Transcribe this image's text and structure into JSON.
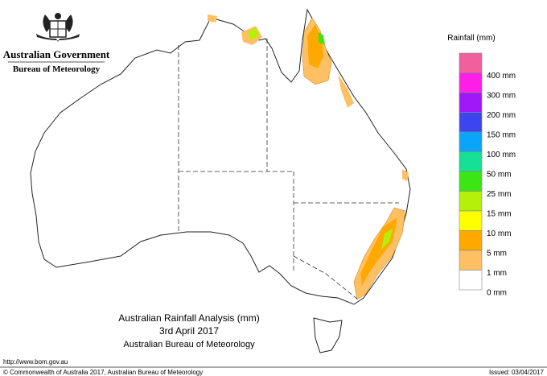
{
  "header": {
    "title": "Australian Government",
    "subtitle": "Bureau of Meteorology"
  },
  "legend": {
    "title": "Rainfall (mm)",
    "items": [
      {
        "label": null,
        "color": "#f0609c"
      },
      {
        "label": "400 mm",
        "color": "#ff1ee8"
      },
      {
        "label": "300 mm",
        "color": "#a018f8"
      },
      {
        "label": "200 mm",
        "color": "#3c46f0"
      },
      {
        "label": "150 mm",
        "color": "#0aa4f8"
      },
      {
        "label": "100 mm",
        "color": "#14e096"
      },
      {
        "label": "50 mm",
        "color": "#3ce614"
      },
      {
        "label": "25 mm",
        "color": "#b4f00a"
      },
      {
        "label": "15 mm",
        "color": "#ffff00"
      },
      {
        "label": "10 mm",
        "color": "#ffa800"
      },
      {
        "label": "5 mm",
        "color": "#ffc064"
      },
      {
        "label": "1 mm",
        "color": "#ffffff"
      },
      {
        "label": "0 mm",
        "color": null
      }
    ]
  },
  "title": {
    "line1": "Australian Rainfall Analysis (mm)",
    "line2": "3rd April 2017",
    "line3": "Australian Bureau of Meteorology"
  },
  "footer": {
    "url": "http://www.bom.gov.au",
    "copyright": "© Commonwealth of Australia 2017, Australian Bureau of Meteorology",
    "issued": "Issued: 03/04/2017"
  }
}
